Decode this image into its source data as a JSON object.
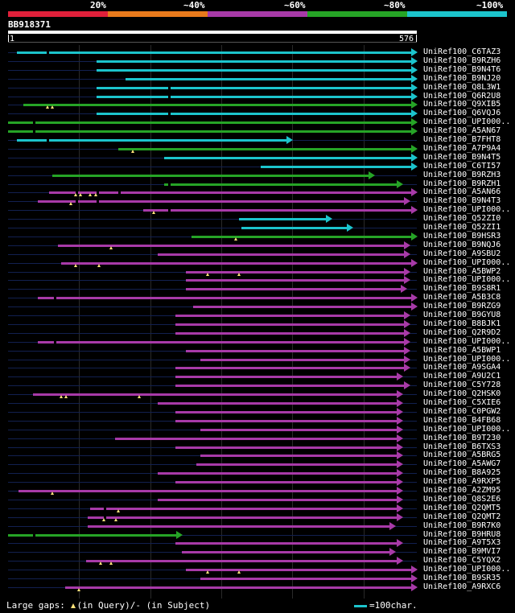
{
  "legend": {
    "labels": [
      "20%",
      "~40%",
      "~60%",
      "~80%",
      "~100%"
    ],
    "colors": [
      "#e0203a",
      "#e87a1c",
      "#a83aa8",
      "#26a426",
      "#1cc4cc"
    ]
  },
  "query": {
    "id": "BB918371",
    "start": "1",
    "end": "576",
    "length": 576
  },
  "hits": [
    {
      "label": "UniRef100_C6TAZ3",
      "s": 13,
      "e": 576,
      "c": 4,
      "gaps": [
        55
      ],
      "ins": []
    },
    {
      "label": "UniRef100_B9RZH6",
      "s": 126,
      "e": 576,
      "c": 4,
      "gaps": [],
      "ins": []
    },
    {
      "label": "UniRef100_B9N4T6",
      "s": 126,
      "e": 576,
      "c": 4,
      "gaps": [],
      "ins": []
    },
    {
      "label": "UniRef100_B9NJ20",
      "s": 166,
      "e": 576,
      "c": 4,
      "gaps": [],
      "ins": []
    },
    {
      "label": "UniRef100_Q8L3W1",
      "s": 126,
      "e": 576,
      "c": 4,
      "gaps": [
        226
      ],
      "ins": []
    },
    {
      "label": "UniRef100_Q6R2U8",
      "s": 126,
      "e": 576,
      "c": 4,
      "gaps": [
        226
      ],
      "ins": []
    },
    {
      "label": "UniRef100_Q9XIB5",
      "s": 23,
      "e": 576,
      "c": 3,
      "gaps": [],
      "ins": [
        56,
        63
      ]
    },
    {
      "label": "UniRef100_Q6VQJ6",
      "s": 126,
      "e": 576,
      "c": 4,
      "gaps": [
        226
      ],
      "ins": []
    },
    {
      "label": "UniRef100_UPI000..",
      "s": 1,
      "e": 576,
      "c": 3,
      "gaps": [
        36
      ],
      "ins": []
    },
    {
      "label": "UniRef100_A5AN67",
      "s": 1,
      "e": 576,
      "c": 3,
      "gaps": [
        36
      ],
      "ins": []
    },
    {
      "label": "UniRef100_B7FHT8",
      "s": 13,
      "e": 401,
      "c": 4,
      "gaps": [
        55
      ],
      "ins": []
    },
    {
      "label": "UniRef100_A7P9A4",
      "s": 156,
      "e": 576,
      "c": 3,
      "gaps": [],
      "ins": [
        176
      ]
    },
    {
      "label": "UniRef100_B9N4T5",
      "s": 221,
      "e": 576,
      "c": 4,
      "gaps": [],
      "ins": []
    },
    {
      "label": "UniRef100_C6TI57",
      "s": 356,
      "e": 576,
      "c": 4,
      "gaps": [],
      "ins": []
    },
    {
      "label": "UniRef100_B9RZH3",
      "s": 63,
      "e": 516,
      "c": 3,
      "gaps": [],
      "ins": []
    },
    {
      "label": "UniRef100_B9RZH1",
      "s": 221,
      "e": 556,
      "c": 3,
      "gaps": [
        226
      ],
      "ins": []
    },
    {
      "label": "UniRef100_A5AN66",
      "s": 59,
      "e": 576,
      "c": 2,
      "gaps": [
        96,
        126,
        156
      ],
      "ins": [
        96,
        103,
        116,
        124
      ]
    },
    {
      "label": "UniRef100_B9N4T3",
      "s": 43,
      "e": 566,
      "c": 2,
      "gaps": [
        96,
        126
      ],
      "ins": [
        89
      ]
    },
    {
      "label": "UniRef100_UPI000..",
      "s": 191,
      "e": 576,
      "c": 2,
      "gaps": [
        226
      ],
      "ins": [
        206
      ]
    },
    {
      "label": "UniRef100_Q52ZI0",
      "s": 326,
      "e": 456,
      "c": 4,
      "gaps": [],
      "ins": []
    },
    {
      "label": "UniRef100_Q52ZI1",
      "s": 329,
      "e": 486,
      "c": 4,
      "gaps": [],
      "ins": []
    },
    {
      "label": "UniRef100_B9HSR3",
      "s": 259,
      "e": 576,
      "c": 3,
      "gaps": [],
      "ins": [
        321
      ]
    },
    {
      "label": "UniRef100_B9NQJ6",
      "s": 71,
      "e": 566,
      "c": 2,
      "gaps": [],
      "ins": [
        146
      ]
    },
    {
      "label": "UniRef100_A9SBU2",
      "s": 211,
      "e": 566,
      "c": 2,
      "gaps": [],
      "ins": []
    },
    {
      "label": "UniRef100_UPI000..",
      "s": 76,
      "e": 576,
      "c": 2,
      "gaps": [],
      "ins": [
        96,
        129
      ]
    },
    {
      "label": "UniRef100_A5BWP2",
      "s": 251,
      "e": 566,
      "c": 2,
      "gaps": [],
      "ins": [
        282,
        326
      ]
    },
    {
      "label": "UniRef100_UPI000..",
      "s": 251,
      "e": 566,
      "c": 2,
      "gaps": [],
      "ins": []
    },
    {
      "label": "UniRef100_B9S8R1",
      "s": 251,
      "e": 561,
      "c": 2,
      "gaps": [],
      "ins": []
    },
    {
      "label": "UniRef100_A5B3C8",
      "s": 43,
      "e": 576,
      "c": 2,
      "gaps": [
        66
      ],
      "ins": []
    },
    {
      "label": "UniRef100_B9RZG9",
      "s": 261,
      "e": 576,
      "c": 2,
      "gaps": [],
      "ins": []
    },
    {
      "label": "UniRef100_B9GYU8",
      "s": 236,
      "e": 566,
      "c": 2,
      "gaps": [],
      "ins": []
    },
    {
      "label": "UniRef100_B8BJK1",
      "s": 236,
      "e": 566,
      "c": 2,
      "gaps": [],
      "ins": []
    },
    {
      "label": "UniRef100_Q2R9D2",
      "s": 236,
      "e": 566,
      "c": 2,
      "gaps": [],
      "ins": []
    },
    {
      "label": "UniRef100_UPI000..",
      "s": 43,
      "e": 566,
      "c": 2,
      "gaps": [
        66
      ],
      "ins": []
    },
    {
      "label": "UniRef100_A5BWP1",
      "s": 251,
      "e": 566,
      "c": 2,
      "gaps": [],
      "ins": []
    },
    {
      "label": "UniRef100_UPI000..",
      "s": 271,
      "e": 566,
      "c": 2,
      "gaps": [],
      "ins": []
    },
    {
      "label": "UniRef100_A9SGA4",
      "s": 236,
      "e": 566,
      "c": 2,
      "gaps": [],
      "ins": []
    },
    {
      "label": "UniRef100_A9U2C1",
      "s": 236,
      "e": 556,
      "c": 2,
      "gaps": [],
      "ins": []
    },
    {
      "label": "UniRef100_C5Y728",
      "s": 236,
      "e": 566,
      "c": 2,
      "gaps": [],
      "ins": []
    },
    {
      "label": "UniRef100_Q2HSK0",
      "s": 36,
      "e": 556,
      "c": 2,
      "gaps": [],
      "ins": [
        76,
        83,
        186
      ]
    },
    {
      "label": "UniRef100_C5XIE6",
      "s": 211,
      "e": 556,
      "c": 2,
      "gaps": [],
      "ins": []
    },
    {
      "label": "UniRef100_C0PGW2",
      "s": 236,
      "e": 556,
      "c": 2,
      "gaps": [],
      "ins": []
    },
    {
      "label": "UniRef100_B4FB68",
      "s": 236,
      "e": 556,
      "c": 2,
      "gaps": [],
      "ins": []
    },
    {
      "label": "UniRef100_UPI000..",
      "s": 271,
      "e": 556,
      "c": 2,
      "gaps": [],
      "ins": []
    },
    {
      "label": "UniRef100_B9T230",
      "s": 151,
      "e": 556,
      "c": 2,
      "gaps": [],
      "ins": []
    },
    {
      "label": "UniRef100_B6TXS3",
      "s": 236,
      "e": 556,
      "c": 2,
      "gaps": [],
      "ins": []
    },
    {
      "label": "UniRef100_A5BRG5",
      "s": 271,
      "e": 556,
      "c": 2,
      "gaps": [],
      "ins": []
    },
    {
      "label": "UniRef100_A5AWG7",
      "s": 266,
      "e": 556,
      "c": 2,
      "gaps": [],
      "ins": []
    },
    {
      "label": "UniRef100_B8A925",
      "s": 211,
      "e": 556,
      "c": 2,
      "gaps": [],
      "ins": []
    },
    {
      "label": "UniRef100_A9RXP5",
      "s": 236,
      "e": 556,
      "c": 2,
      "gaps": [],
      "ins": []
    },
    {
      "label": "UniRef100_A2ZM95",
      "s": 16,
      "e": 556,
      "c": 2,
      "gaps": [],
      "ins": [
        63
      ]
    },
    {
      "label": "UniRef100_Q8S2E6",
      "s": 211,
      "e": 556,
      "c": 2,
      "gaps": [],
      "ins": []
    },
    {
      "label": "UniRef100_Q2QMT5",
      "s": 116,
      "e": 556,
      "c": 2,
      "gaps": [
        136
      ],
      "ins": [
        156
      ]
    },
    {
      "label": "UniRef100_Q2QMT2",
      "s": 113,
      "e": 556,
      "c": 2,
      "gaps": [
        136
      ],
      "ins": [
        136,
        153
      ]
    },
    {
      "label": "UniRef100_B9R7K0",
      "s": 113,
      "e": 546,
      "c": 2,
      "gaps": [],
      "ins": []
    },
    {
      "label": "UniRef100_B9HRU8",
      "s": 1,
      "e": 246,
      "c": 3,
      "gaps": [
        36
      ],
      "ins": []
    },
    {
      "label": "UniRef100_A9T5X3",
      "s": 236,
      "e": 556,
      "c": 2,
      "gaps": [],
      "ins": []
    },
    {
      "label": "UniRef100_B9MVI7",
      "s": 246,
      "e": 546,
      "c": 2,
      "gaps": [],
      "ins": []
    },
    {
      "label": "UniRef100_C5YQX2",
      "s": 111,
      "e": 556,
      "c": 2,
      "gaps": [],
      "ins": [
        131,
        146
      ]
    },
    {
      "label": "UniRef100_UPI000..",
      "s": 251,
      "e": 576,
      "c": 2,
      "gaps": [],
      "ins": [
        282,
        326
      ]
    },
    {
      "label": "UniRef100_B9SR35",
      "s": 271,
      "e": 576,
      "c": 2,
      "gaps": [],
      "ins": []
    },
    {
      "label": "UniRef100_A9RXC6",
      "s": 81,
      "e": 576,
      "c": 2,
      "gaps": [],
      "ins": [
        101
      ]
    }
  ],
  "footer": {
    "gaps_prefix": "Large gaps:",
    "gaps_query": "(in Query)/",
    "gaps_subject": "(in Subject)",
    "scale_label": "=100char."
  }
}
